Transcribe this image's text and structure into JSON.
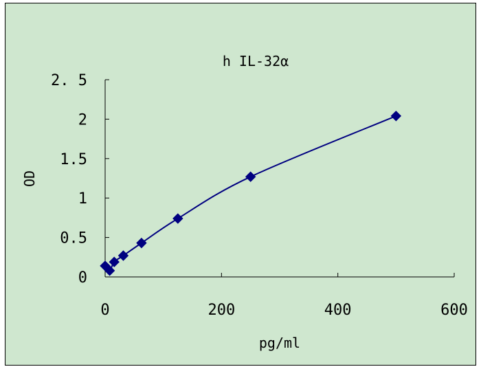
{
  "chart_data": {
    "type": "scatter",
    "title": "h IL-32α",
    "xlabel": "pg/ml",
    "ylabel": "OD",
    "xlim": [
      0,
      600
    ],
    "ylim": [
      0,
      2.5
    ],
    "x_ticks": [
      0,
      200,
      400,
      600
    ],
    "x_tick_labels": [
      "0",
      "200",
      "400",
      "600"
    ],
    "y_ticks": [
      0,
      0.5,
      1,
      1.5,
      2,
      2.5
    ],
    "y_tick_labels": [
      "0",
      "0.5",
      "1",
      "1.5",
      "2",
      "2. 5"
    ],
    "grid": false,
    "trendline": "smooth",
    "series": [
      {
        "x": [
          0,
          7.8,
          15.6,
          31.25,
          62.5,
          125,
          250,
          500
        ],
        "y": [
          0.14,
          0.08,
          0.19,
          0.27,
          0.43,
          0.74,
          1.27,
          2.04
        ],
        "marker": "diamond",
        "color": "#000080"
      }
    ]
  },
  "colors": {
    "background": "#cfe7cf",
    "series": "#000080",
    "axis": "#000000"
  }
}
